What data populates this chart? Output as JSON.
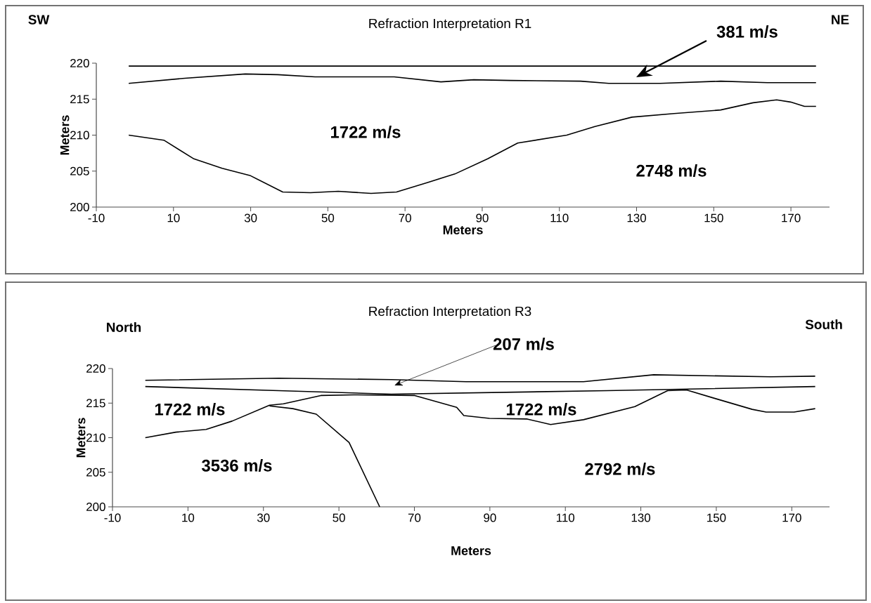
{
  "chart_data": [
    {
      "type": "line",
      "title": "Refraction Interpretation R1",
      "xlabel": "Meters",
      "ylabel": "Meters",
      "xlim": [
        -10,
        180
      ],
      "ylim": [
        200,
        220
      ],
      "xticks": [
        -10,
        10,
        30,
        50,
        70,
        90,
        110,
        130,
        150,
        170
      ],
      "yticks": [
        200,
        205,
        210,
        215,
        220
      ],
      "series": [
        {
          "color": "#000000",
          "x": [
            -1.6,
            176.5
          ],
          "values": [
            219.6,
            219.6
          ]
        },
        {
          "color": "#000000",
          "x": [
            -1.6,
            12.9,
            28.6,
            37.0,
            46.7,
            67.2,
            79.3,
            87.8,
            97.4,
            115.5,
            122.8,
            136.1,
            151.8,
            163.9,
            176.5
          ],
          "values": [
            217.2,
            217.9,
            218.5,
            218.4,
            218.1,
            218.1,
            217.4,
            217.7,
            217.6,
            217.5,
            217.2,
            217.2,
            217.5,
            217.3,
            217.3
          ]
        },
        {
          "color": "#000000",
          "x": [
            -1.6,
            7.5,
            15.3,
            22.6,
            29.8,
            38.3,
            45.5,
            52.7,
            61.2,
            67.8,
            75.7,
            82.9,
            91.4,
            99.2,
            111.9,
            119.2,
            128.8,
            139.7,
            151.8,
            160.2,
            166.3,
            169.9,
            173.5,
            176.5
          ],
          "values": [
            210.0,
            209.3,
            206.7,
            205.4,
            204.4,
            202.1,
            202.0,
            202.2,
            201.9,
            202.1,
            203.4,
            204.6,
            206.7,
            208.9,
            210.0,
            211.2,
            212.5,
            213.0,
            213.5,
            214.5,
            214.9,
            214.6,
            214.0,
            214.0
          ]
        }
      ],
      "annotations": [
        "SW",
        "NE",
        "381 m/s",
        "1722 m/s",
        "2748 m/s"
      ]
    },
    {
      "type": "line",
      "title": "Refraction Interpretation R3",
      "xlabel": "Meters",
      "ylabel": "Meters",
      "xlim": [
        -10,
        180
      ],
      "ylim": [
        200,
        220
      ],
      "xticks": [
        -10,
        10,
        30,
        50,
        70,
        90,
        110,
        130,
        150,
        170
      ],
      "yticks": [
        200,
        205,
        210,
        215,
        220
      ],
      "series": [
        {
          "color": "#000000",
          "x": [
            -1.3,
            34.1,
            63.9,
            83.7,
            114.8,
            133.4,
            164.4,
            176.2
          ],
          "values": [
            218.3,
            218.6,
            218.4,
            218.1,
            218.1,
            219.1,
            218.8,
            218.9
          ]
        },
        {
          "color": "#000000",
          "x": [
            -1.3,
            34.1,
            63.9,
            121.0,
            176.2
          ],
          "values": [
            217.4,
            216.8,
            216.3,
            216.8,
            217.4
          ]
        },
        {
          "color": "#000000",
          "x": [
            -1.3,
            6.8,
            14.8,
            21.7,
            31.6,
            35.3,
            45.2,
            53.9,
            70.1,
            81.2,
            83.1,
            89.9,
            99.9,
            106.1,
            114.8,
            128.4,
            137.1,
            142.1,
            149.5,
            159.5,
            163.2,
            170.6,
            176.2
          ],
          "values": [
            210.0,
            210.8,
            211.2,
            212.4,
            214.7,
            214.9,
            216.1,
            216.2,
            216.1,
            214.4,
            213.2,
            212.8,
            212.7,
            211.9,
            212.6,
            214.5,
            216.8,
            216.9,
            215.7,
            214.1,
            213.7,
            213.7,
            214.2
          ]
        },
        {
          "color": "#000000",
          "x": [
            31.6,
            37.8,
            44.0,
            52.7,
            60.8
          ],
          "values": [
            214.6,
            214.2,
            213.4,
            209.3,
            200.0
          ]
        }
      ],
      "annotations": [
        "North",
        "South",
        "207 m/s",
        "1722 m/s",
        "1722 m/s",
        "3536 m/s",
        "2792 m/s"
      ]
    }
  ]
}
